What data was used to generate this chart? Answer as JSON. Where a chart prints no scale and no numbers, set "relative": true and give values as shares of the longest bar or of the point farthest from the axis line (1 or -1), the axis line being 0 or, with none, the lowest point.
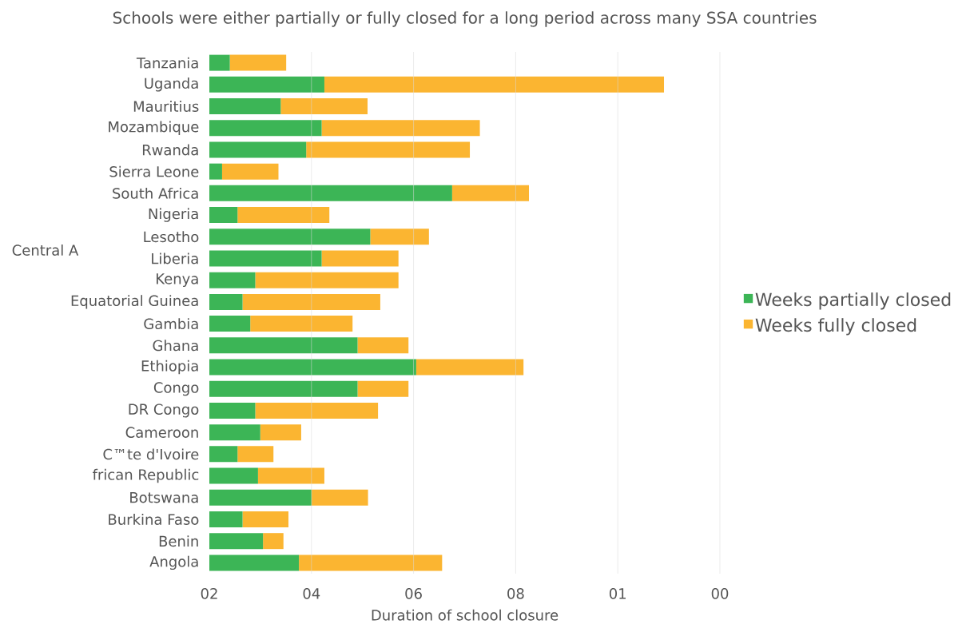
{
  "chart_data": {
    "type": "bar",
    "orientation": "horizontal",
    "stacked": true,
    "relative": true,
    "title": "Schools were either partially or fully closed for a long period across many SSA countries",
    "xlabel": "Duration of school closure",
    "categories": [
      "Tanzania",
      "Uganda",
      "Mauritius",
      "Mozambique",
      "Rwanda",
      "Sierra Leone",
      "South Africa",
      "Nigeria",
      "Lesotho",
      "Liberia",
      "Kenya",
      "Equatorial Guinea",
      "Gambia",
      "Ghana",
      "Ethiopia",
      "Congo",
      "DR Congo",
      "Cameroon",
      "C™te d'Ivoire",
      "frican Republic",
      "Botswana",
      "Burkina Faso",
      "Benin",
      "Angola"
    ],
    "series": [
      {
        "name": "Weeks partially closed",
        "color": "#3cb556",
        "values": [
          0.045,
          0.253,
          0.157,
          0.247,
          0.213,
          0.028,
          0.534,
          0.062,
          0.354,
          0.247,
          0.101,
          0.073,
          0.09,
          0.326,
          0.455,
          0.326,
          0.101,
          0.112,
          0.062,
          0.107,
          0.225,
          0.073,
          0.118,
          0.197
        ]
      },
      {
        "name": "Weeks fully closed",
        "color": "#fbb531",
        "values": [
          0.124,
          0.747,
          0.191,
          0.348,
          0.36,
          0.124,
          0.169,
          0.202,
          0.129,
          0.169,
          0.315,
          0.303,
          0.225,
          0.112,
          0.236,
          0.112,
          0.27,
          0.09,
          0.079,
          0.146,
          0.124,
          0.101,
          0.045,
          0.315
        ]
      }
    ],
    "grid": "x",
    "legend": "right",
    "annotations": [
      "Central A",
      "02",
      "04",
      "06",
      "08",
      "01",
      "00"
    ]
  }
}
